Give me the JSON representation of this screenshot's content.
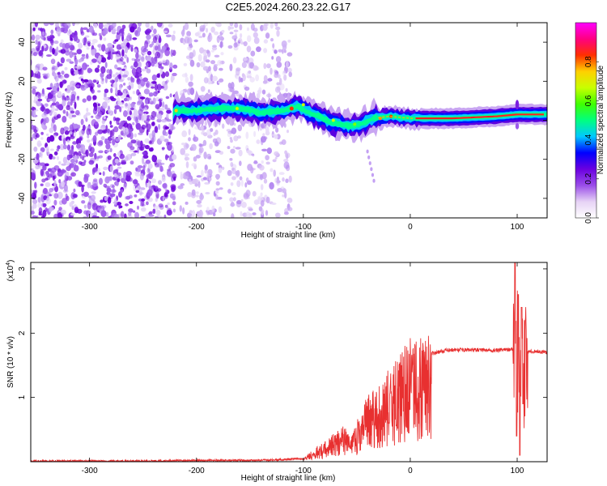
{
  "title": "C2E5.2024.260.23.22.G17",
  "chart_data": [
    {
      "type": "heatmap",
      "xlabel": "Height of straight line (km)",
      "ylabel": "Frequency (Hz)",
      "xlim": [
        -355,
        128
      ],
      "ylim": [
        -50,
        50
      ],
      "x_ticks": [
        -300,
        -200,
        -100,
        0,
        100
      ],
      "y_ticks": [
        -40,
        -20,
        0,
        20,
        40
      ],
      "colorbar": {
        "label": "Normalized spectral amplitude",
        "range": [
          0,
          1
        ],
        "ticks": [
          "0.0",
          "0.2",
          "0.4",
          "0.6",
          "0.8"
        ],
        "tick_values": [
          0,
          0.2,
          0.4,
          0.6,
          0.8
        ],
        "colors": [
          "#ffffff",
          "#e6d2f5",
          "#9a4de8",
          "#6b00e0",
          "#0000ff",
          "#00c8ff",
          "#00ff80",
          "#40ff00",
          "#c8ff00",
          "#ffd000",
          "#ff3000",
          "#ff0080",
          "#ff00ff"
        ]
      },
      "ridge": [
        {
          "x": -220,
          "y": 5
        },
        {
          "x": -200,
          "y": 5
        },
        {
          "x": -180,
          "y": 6
        },
        {
          "x": -160,
          "y": 6
        },
        {
          "x": -140,
          "y": 4
        },
        {
          "x": -120,
          "y": 5
        },
        {
          "x": -105,
          "y": 7
        },
        {
          "x": -95,
          "y": 4
        },
        {
          "x": -85,
          "y": 2
        },
        {
          "x": -75,
          "y": -1
        },
        {
          "x": -65,
          "y": -2
        },
        {
          "x": -55,
          "y": -3
        },
        {
          "x": -45,
          "y": -2
        },
        {
          "x": -35,
          "y": 1
        },
        {
          "x": -20,
          "y": 2
        },
        {
          "x": 0,
          "y": 1
        },
        {
          "x": 40,
          "y": 1
        },
        {
          "x": 80,
          "y": 2
        },
        {
          "x": 100,
          "y": 3
        },
        {
          "x": 128,
          "y": 3
        }
      ]
    },
    {
      "type": "line",
      "xlabel": "Height of straight line (km)",
      "ylabel": "SNR (10 * v/v)",
      "y_multiplier": "(x10",
      "y_multiplier_exp": "4",
      "y_multiplier_close": ")",
      "xlim": [
        -355,
        128
      ],
      "ylim": [
        0,
        3.1
      ],
      "x_ticks": [
        -300,
        -200,
        -100,
        0,
        100
      ],
      "y_ticks": [
        1,
        2,
        3
      ],
      "color": "#e83030",
      "series": [
        {
          "x": [
            -355,
            -300,
            -250,
            -200,
            -150,
            -120,
            -100,
            -90,
            -80,
            -70,
            -62,
            -55,
            -50,
            -45,
            -40,
            -35,
            -30,
            -25,
            -20,
            -15,
            -10,
            -5,
            0,
            10,
            20,
            30,
            40,
            60,
            80,
            95,
            100,
            102,
            104,
            106,
            110,
            115,
            128
          ],
          "y": [
            0.01,
            0.01,
            0.01,
            0.02,
            0.02,
            0.03,
            0.05,
            0.15,
            0.25,
            0.35,
            0.45,
            0.3,
            0.5,
            0.65,
            0.8,
            0.9,
            1.0,
            1.05,
            1.1,
            1.2,
            1.3,
            1.4,
            1.48,
            1.6,
            1.68,
            1.72,
            1.74,
            1.74,
            1.73,
            1.75,
            1.8,
            1.6,
            1.9,
            1.4,
            1.7,
            1.72,
            1.7
          ]
        }
      ]
    }
  ]
}
